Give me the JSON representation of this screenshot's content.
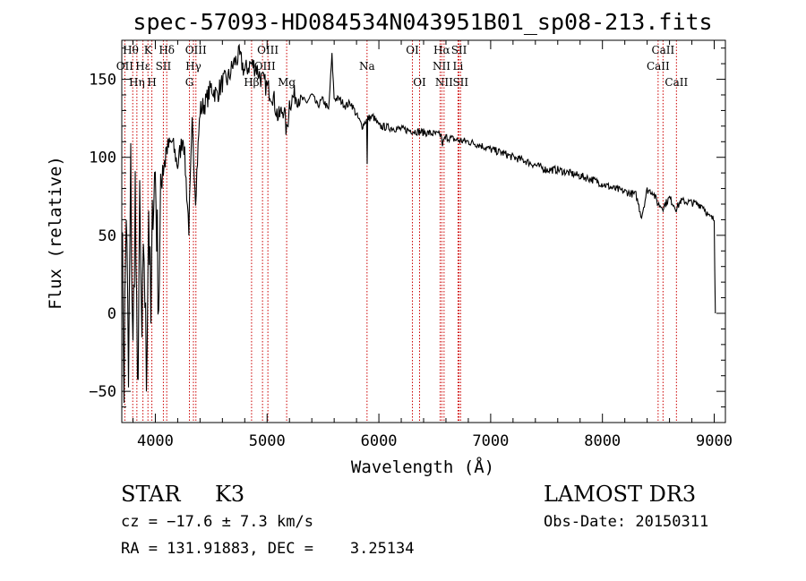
{
  "chart_data": {
    "type": "line",
    "title": "spec-57093-HD084534N043951B01_sp08-213.fits",
    "xlabel": "Wavelength (Å)",
    "ylabel": "Flux (relative)",
    "xlim": [
      3700,
      9100
    ],
    "ylim": [
      -70,
      175
    ],
    "xticks": [
      4000,
      5000,
      6000,
      7000,
      8000,
      9000
    ],
    "yticks": [
      -50,
      0,
      50,
      100,
      150
    ],
    "line_color": "#000000",
    "marker_color": "#cc0000",
    "series": [
      {
        "name": "flux",
        "x": [
          3700,
          3720,
          3740,
          3760,
          3780,
          3800,
          3820,
          3840,
          3860,
          3880,
          3900,
          3920,
          3940,
          3960,
          3980,
          4000,
          4030,
          4060,
          4100,
          4150,
          4200,
          4250,
          4300,
          4330,
          4360,
          4400,
          4450,
          4500,
          4550,
          4600,
          4650,
          4700,
          4750,
          4800,
          4850,
          4900,
          4950,
          5000,
          5050,
          5100,
          5150,
          5175,
          5200,
          5250,
          5300,
          5350,
          5400,
          5450,
          5500,
          5550,
          5580,
          5600,
          5650,
          5700,
          5750,
          5800,
          5850,
          5890,
          5895,
          5900,
          5950,
          6000,
          6100,
          6200,
          6300,
          6400,
          6500,
          6560,
          6563,
          6600,
          6700,
          6800,
          6900,
          7000,
          7100,
          7200,
          7300,
          7400,
          7500,
          7600,
          7700,
          7800,
          7900,
          8000,
          8100,
          8200,
          8300,
          8350,
          8400,
          8450,
          8498,
          8542,
          8600,
          8662,
          8700,
          8800,
          8900,
          8950,
          9000,
          9010
        ],
        "y": [
          60,
          -40,
          70,
          -50,
          90,
          -30,
          80,
          -60,
          60,
          -20,
          40,
          -40,
          70,
          -10,
          80,
          90,
          10,
          100,
          105,
          110,
          95,
          115,
          55,
          120,
          75,
          130,
          135,
          145,
          140,
          148,
          150,
          160,
          165,
          155,
          160,
          158,
          150,
          145,
          140,
          125,
          132,
          115,
          135,
          140,
          138,
          135,
          140,
          133,
          137,
          130,
          165,
          138,
          137,
          133,
          135,
          127,
          120,
          124,
          95,
          125,
          126,
          120,
          119,
          118,
          117,
          116,
          115,
          114,
          108,
          113,
          111,
          110,
          108,
          105,
          103,
          100,
          98,
          95,
          92,
          92,
          90,
          88,
          86,
          83,
          80,
          78,
          76,
          62,
          79,
          78,
          70,
          68,
          74,
          67,
          72,
          71,
          69,
          62,
          60,
          0
        ]
      }
    ],
    "lines": [
      {
        "name": "Hθ",
        "wavelength": 3798
      },
      {
        "name": "OII",
        "wavelength": 3727
      },
      {
        "name": "Hη",
        "wavelength": 3835
      },
      {
        "name": "Hε",
        "wavelength": 3889
      },
      {
        "name": "K",
        "wavelength": 3934
      },
      {
        "name": "H",
        "wavelength": 3969
      },
      {
        "name": "Hδ",
        "wavelength": 4102
      },
      {
        "name": "SII",
        "wavelength": 4072
      },
      {
        "name": "G",
        "wavelength": 4305
      },
      {
        "name": "OIII",
        "wavelength": 4363
      },
      {
        "name": "Hγ",
        "wavelength": 4341
      },
      {
        "name": "Hβ",
        "wavelength": 4861
      },
      {
        "name": "OIII",
        "wavelength": 4959
      },
      {
        "name": "OIII",
        "wavelength": 5007
      },
      {
        "name": "Mg",
        "wavelength": 5175
      },
      {
        "name": "Na",
        "wavelength": 5894
      },
      {
        "name": "OI",
        "wavelength": 6300
      },
      {
        "name": "OI",
        "wavelength": 6364
      },
      {
        "name": "NII",
        "wavelength": 6548
      },
      {
        "name": "Hα",
        "wavelength": 6563
      },
      {
        "name": "NII",
        "wavelength": 6583
      },
      {
        "name": "Li",
        "wavelength": 6708
      },
      {
        "name": "SII",
        "wavelength": 6717
      },
      {
        "name": "SII",
        "wavelength": 6731
      },
      {
        "name": "CaII",
        "wavelength": 8498
      },
      {
        "name": "CaII",
        "wavelength": 8542
      },
      {
        "name": "CaII",
        "wavelength": 8662
      }
    ],
    "line_labels": [
      {
        "text": "Hθ",
        "wavelength": 3780,
        "row": 0
      },
      {
        "text": "OII",
        "wavelength": 3727,
        "row": 1
      },
      {
        "text": "Hη",
        "wavelength": 3835,
        "row": 2
      },
      {
        "text": "K",
        "wavelength": 3934,
        "row": 0
      },
      {
        "text": "Hε",
        "wavelength": 3889,
        "row": 1
      },
      {
        "text": "H",
        "wavelength": 3969,
        "row": 2
      },
      {
        "text": "Hδ",
        "wavelength": 4102,
        "row": 0
      },
      {
        "text": "SII",
        "wavelength": 4072,
        "row": 1
      },
      {
        "text": "OIII",
        "wavelength": 4363,
        "row": 0
      },
      {
        "text": "Hγ",
        "wavelength": 4341,
        "row": 1
      },
      {
        "text": "G",
        "wavelength": 4305,
        "row": 2
      },
      {
        "text": "Hβ",
        "wavelength": 4861,
        "row": 2
      },
      {
        "text": "OIII",
        "wavelength": 5007,
        "row": 0
      },
      {
        "text": "OIII",
        "wavelength": 4980,
        "row": 1
      },
      {
        "text": "Mg",
        "wavelength": 5175,
        "row": 2
      },
      {
        "text": "Na",
        "wavelength": 5894,
        "row": 1
      },
      {
        "text": "OI",
        "wavelength": 6300,
        "row": 0
      },
      {
        "text": "OI",
        "wavelength": 6364,
        "row": 2
      },
      {
        "text": "Hα",
        "wavelength": 6563,
        "row": 0
      },
      {
        "text": "SII",
        "wavelength": 6717,
        "row": 0
      },
      {
        "text": "NII",
        "wavelength": 6560,
        "row": 1
      },
      {
        "text": "Li",
        "wavelength": 6708,
        "row": 1
      },
      {
        "text": "NII",
        "wavelength": 6583,
        "row": 2
      },
      {
        "text": "SII",
        "wavelength": 6731,
        "row": 2
      },
      {
        "text": "CaII",
        "wavelength": 8542,
        "row": 0
      },
      {
        "text": "CaII",
        "wavelength": 8498,
        "row": 1
      },
      {
        "text": "CaII",
        "wavelength": 8662,
        "row": 2
      }
    ]
  },
  "info": {
    "object_class": "STAR",
    "subclass": "K3",
    "survey": "LAMOST DR3",
    "redshift": "cz = −17.6 ± 7.3 km/s",
    "obs_date": "Obs-Date: 20150311",
    "coords": "RA = 131.91883, DEC =    3.25134"
  }
}
